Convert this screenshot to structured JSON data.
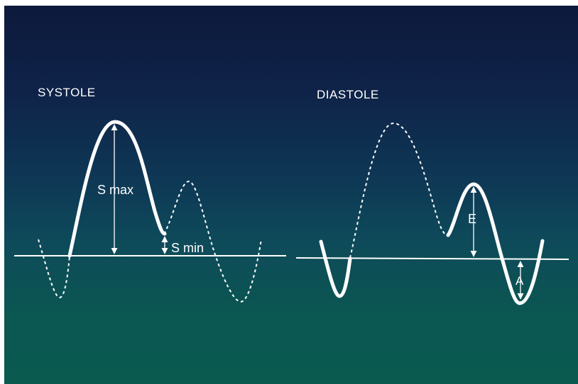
{
  "panels": {
    "systole": {
      "title": "SYSTOLE",
      "labels": {
        "s_max": "S max",
        "s_min": "S min"
      }
    },
    "diastole": {
      "title": "DIASTOLE",
      "labels": {
        "e": "E",
        "a": "A"
      }
    }
  },
  "colors": {
    "background_top": "#0c1a3c",
    "background_bottom": "#0a5a50",
    "stroke": "#ffffff"
  }
}
